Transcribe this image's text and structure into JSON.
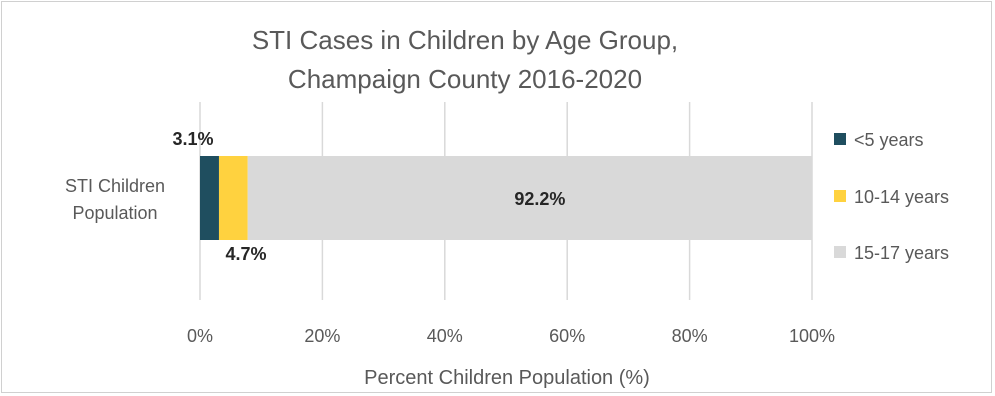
{
  "chart_data": {
    "type": "bar",
    "orientation": "horizontal",
    "stacked": true,
    "title_lines": [
      "STI Cases in Children by Age Group,",
      "Champaign County 2016-2020"
    ],
    "categories": [
      "STI Children Population"
    ],
    "category_label_lines": [
      "STI Children",
      "Population"
    ],
    "series": [
      {
        "name": "<5 years",
        "values": [
          3.1
        ],
        "label": "3.1%",
        "color": "#1f4e5f"
      },
      {
        "name": "10-14 years",
        "values": [
          4.7
        ],
        "label": "4.7%",
        "color": "#ffd23f"
      },
      {
        "name": "15-17 years",
        "values": [
          92.2
        ],
        "label": "92.2%",
        "color": "#d9d9d9"
      }
    ],
    "xlabel": "Percent Children Population (%)",
    "xlim": [
      0,
      100
    ],
    "xticks": [
      "0%",
      "20%",
      "40%",
      "60%",
      "80%",
      "100%"
    ],
    "grid": true,
    "legend_position": "right"
  }
}
